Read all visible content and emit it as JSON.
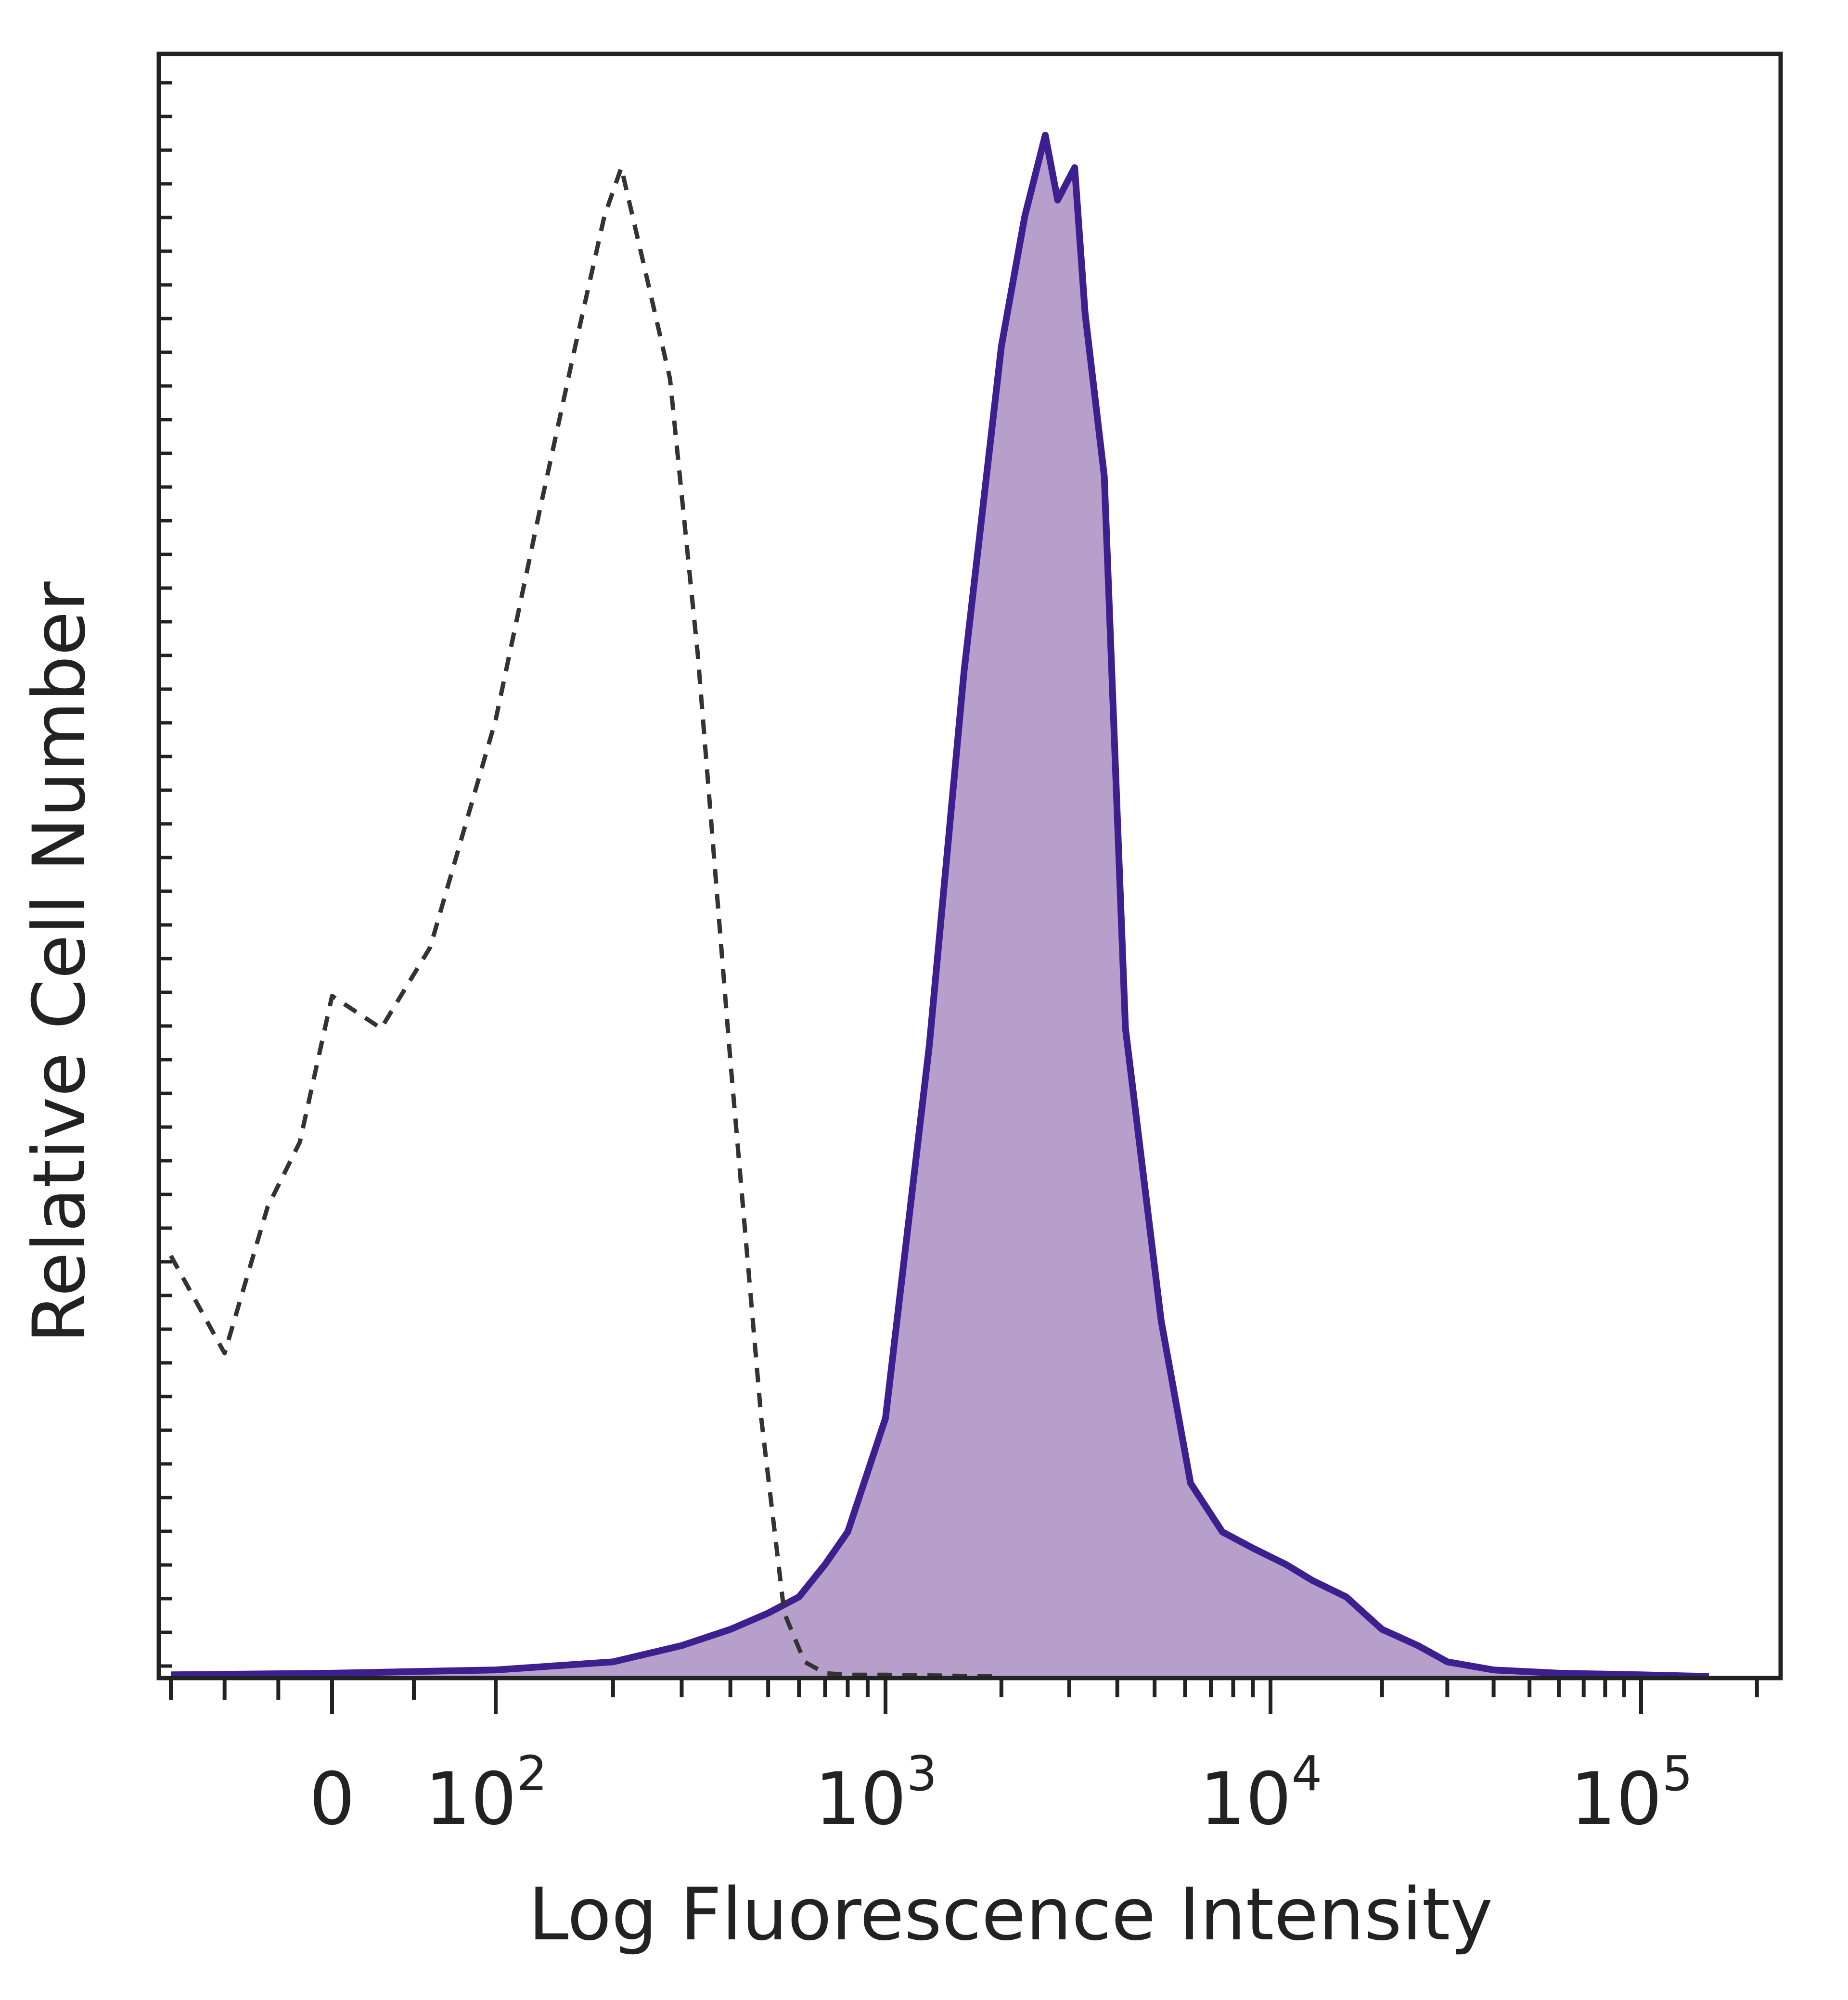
{
  "chart_data": {
    "type": "area",
    "xlabel": "Log Fluorescence Intensity",
    "ylabel": "Relative Cell Number",
    "x_scale": "biexponential",
    "x_ticks": [
      {
        "value": 0,
        "base": "0",
        "exp": ""
      },
      {
        "value": 100,
        "base": "10",
        "exp": "2"
      },
      {
        "value": 1000,
        "base": "10",
        "exp": "3"
      },
      {
        "value": 10000,
        "base": "10",
        "exp": "4"
      },
      {
        "value": 100000,
        "base": "10",
        "exp": "5"
      }
    ],
    "ylim": [
      0,
      100
    ],
    "grid": false,
    "series": [
      {
        "style": "dashed",
        "color": "#333333",
        "fill": "none",
        "x": [
          -300,
          -200,
          -120,
          -60,
          0,
          30,
          60,
          100,
          130,
          160,
          190,
          210,
          240,
          280,
          330,
          400,
          480,
          550,
          620,
          700,
          800,
          1000,
          2000
        ],
        "y": [
          26,
          20,
          29,
          33,
          42,
          40,
          45,
          59,
          72,
          82,
          90,
          93,
          87,
          80,
          63,
          38,
          16,
          4,
          1,
          0.3,
          0.2,
          0.2,
          0.1
        ]
      },
      {
        "style": "solid",
        "color": "#3d1f8f",
        "fill": "#b79fcc",
        "x": [
          -300,
          0,
          100,
          200,
          300,
          400,
          500,
          600,
          700,
          800,
          1000,
          1300,
          1600,
          2000,
          2300,
          2600,
          2800,
          3100,
          3300,
          3700,
          4200,
          5200,
          6200,
          7500,
          9000,
          11000,
          13000,
          16000,
          20000,
          25000,
          30000,
          40000,
          60000,
          100000,
          150000
        ],
        "y": [
          0.2,
          0.3,
          0.5,
          1,
          2,
          3,
          4,
          5,
          7,
          9,
          16,
          39,
          62,
          82,
          90,
          95,
          91,
          93,
          84,
          74,
          40,
          22,
          12,
          9,
          8,
          7,
          6,
          5,
          3,
          2,
          1,
          0.5,
          0.3,
          0.2,
          0.1
        ]
      }
    ]
  }
}
